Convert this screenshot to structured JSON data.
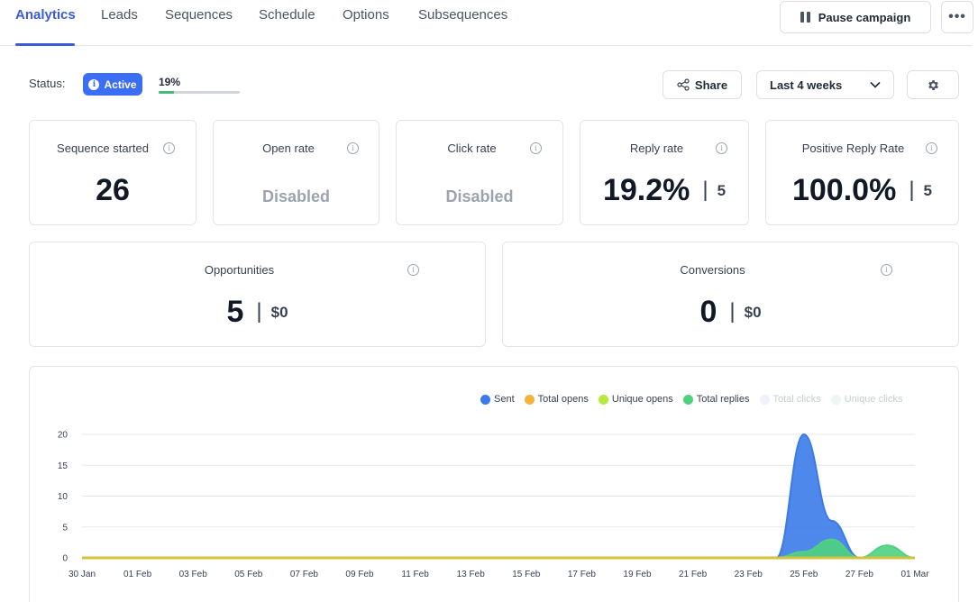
{
  "tabs": [
    {
      "label": "Analytics",
      "active": true
    },
    {
      "label": "Leads"
    },
    {
      "label": "Sequences"
    },
    {
      "label": "Schedule"
    },
    {
      "label": "Options"
    },
    {
      "label": "Subsequences"
    }
  ],
  "header": {
    "pause_label": "Pause campaign",
    "more_label": "•••"
  },
  "status": {
    "label": "Status:",
    "badge": "Active",
    "progress_text": "19%",
    "progress": 0.19
  },
  "toolbar": {
    "share_label": "Share",
    "range_label": "Last 4 weeks"
  },
  "cards": {
    "sequence_started": {
      "title": "Sequence started",
      "value": "26"
    },
    "open_rate": {
      "title": "Open rate",
      "value": "Disabled"
    },
    "click_rate": {
      "title": "Click rate",
      "value": "Disabled"
    },
    "reply_rate": {
      "title": "Reply rate",
      "value": "19.2%",
      "sub": "5"
    },
    "positive_reply_rate": {
      "title": "Positive Reply Rate",
      "value": "100.0%",
      "sub": "5"
    },
    "opportunities": {
      "title": "Opportunities",
      "value": "5",
      "sub": "$0"
    },
    "conversions": {
      "title": "Conversions",
      "value": "0",
      "sub": "$0"
    }
  },
  "colors": {
    "accent": "#3b5bdb",
    "sent": "#3b7be8",
    "total_opens": "#f2b53a",
    "unique_opens": "#b6e93b",
    "total_replies": "#4fd17f",
    "total_clicks": "#e8f0fa",
    "unique_clicks": "#e8f3f3"
  },
  "chart_data": {
    "type": "area",
    "x": [
      "30 Jan",
      "31 Jan",
      "01 Feb",
      "02 Feb",
      "03 Feb",
      "04 Feb",
      "05 Feb",
      "06 Feb",
      "07 Feb",
      "08 Feb",
      "09 Feb",
      "10 Feb",
      "11 Feb",
      "12 Feb",
      "13 Feb",
      "14 Feb",
      "15 Feb",
      "16 Feb",
      "17 Feb",
      "18 Feb",
      "19 Feb",
      "20 Feb",
      "21 Feb",
      "22 Feb",
      "23 Feb",
      "24 Feb",
      "25 Feb",
      "26 Feb",
      "27 Feb",
      "28 Feb",
      "01 Mar"
    ],
    "xticks": [
      "30 Jan",
      "01 Feb",
      "03 Feb",
      "05 Feb",
      "07 Feb",
      "09 Feb",
      "11 Feb",
      "13 Feb",
      "15 Feb",
      "17 Feb",
      "19 Feb",
      "21 Feb",
      "23 Feb",
      "25 Feb",
      "27 Feb",
      "01 Mar"
    ],
    "yticks": [
      0,
      5,
      10,
      15,
      20
    ],
    "ylim": [
      0,
      20
    ],
    "legend_position": "top-right",
    "grid": true,
    "series": [
      {
        "name": "Sent",
        "color": "#3b7be8",
        "values": [
          0,
          0,
          0,
          0,
          0,
          0,
          0,
          0,
          0,
          0,
          0,
          0,
          0,
          0,
          0,
          0,
          0,
          0,
          0,
          0,
          0,
          0,
          0,
          0,
          0,
          0,
          20,
          6,
          0,
          0,
          0
        ]
      },
      {
        "name": "Total opens",
        "color": "#f2b53a",
        "values": [
          0,
          0,
          0,
          0,
          0,
          0,
          0,
          0,
          0,
          0,
          0,
          0,
          0,
          0,
          0,
          0,
          0,
          0,
          0,
          0,
          0,
          0,
          0,
          0,
          0,
          0,
          0,
          0,
          0,
          0,
          0
        ]
      },
      {
        "name": "Unique opens",
        "color": "#b6e93b",
        "values": [
          0,
          0,
          0,
          0,
          0,
          0,
          0,
          0,
          0,
          0,
          0,
          0,
          0,
          0,
          0,
          0,
          0,
          0,
          0,
          0,
          0,
          0,
          0,
          0,
          0,
          0,
          0,
          0,
          0,
          0,
          0
        ]
      },
      {
        "name": "Total replies",
        "color": "#4fd17f",
        "values": [
          0,
          0,
          0,
          0,
          0,
          0,
          0,
          0,
          0,
          0,
          0,
          0,
          0,
          0,
          0,
          0,
          0,
          0,
          0,
          0,
          0,
          0,
          0,
          0,
          0,
          0,
          1,
          3,
          0,
          2,
          0
        ]
      },
      {
        "name": "Total clicks",
        "color": "#e8f0fa",
        "values": [
          0,
          0,
          0,
          0,
          0,
          0,
          0,
          0,
          0,
          0,
          0,
          0,
          0,
          0,
          0,
          0,
          0,
          0,
          0,
          0,
          0,
          0,
          0,
          0,
          0,
          0,
          0,
          0,
          0,
          0,
          0
        ]
      },
      {
        "name": "Unique clicks",
        "color": "#e8f3f3",
        "values": [
          0,
          0,
          0,
          0,
          0,
          0,
          0,
          0,
          0,
          0,
          0,
          0,
          0,
          0,
          0,
          0,
          0,
          0,
          0,
          0,
          0,
          0,
          0,
          0,
          0,
          0,
          0,
          0,
          0,
          0,
          0
        ]
      }
    ]
  }
}
